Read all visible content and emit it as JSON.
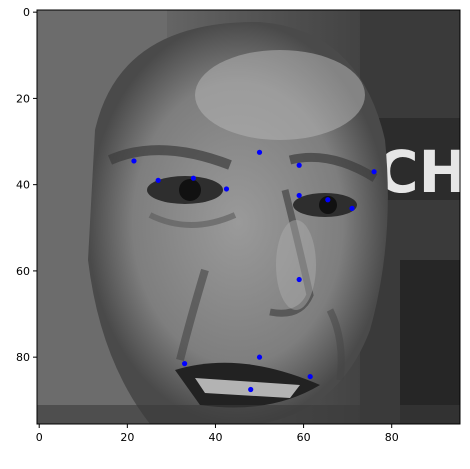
{
  "chart_data": {
    "type": "scatter",
    "title": "",
    "xlabel": "",
    "ylabel": "",
    "xlim": [
      -0.5,
      95.5
    ],
    "ylim": [
      95.5,
      -0.5
    ],
    "y_inverted": true,
    "grid": false,
    "legend": "none",
    "xticks": [
      0,
      20,
      40,
      60,
      80
    ],
    "yticks": [
      0,
      20,
      40,
      60,
      80
    ],
    "xtick_labels": [
      "0",
      "20",
      "40",
      "60",
      "80"
    ],
    "ytick_labels": [
      "0",
      "20",
      "40",
      "60",
      "80"
    ],
    "background": "grayscale face photograph",
    "marker_color": "#0000ff",
    "series": [
      {
        "x": [
          21.5,
          27.0,
          35.0,
          42.5,
          50.0,
          59.0,
          59.0,
          65.5,
          71.0,
          76.0,
          59.0,
          33.0,
          50.0,
          61.5,
          48.0
        ],
        "y": [
          34.5,
          39.0,
          38.5,
          41.0,
          32.5,
          35.5,
          42.5,
          43.5,
          45.5,
          37.0,
          62.0,
          81.5,
          80.0,
          84.5,
          87.5
        ]
      }
    ]
  }
}
